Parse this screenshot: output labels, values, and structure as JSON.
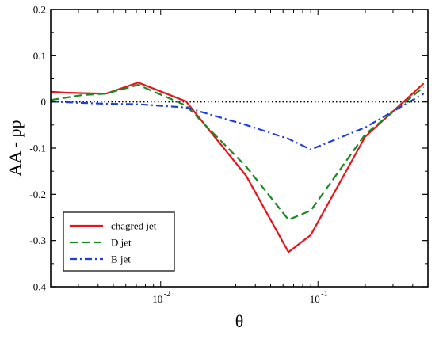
{
  "chart_data": {
    "type": "line",
    "title": "",
    "xlabel": "θ",
    "ylabel": "AA - pp",
    "x_scale": "log",
    "xlim": [
      0.002,
      0.5
    ],
    "ylim": [
      -0.4,
      0.2
    ],
    "y_ticks": [
      -0.4,
      -0.3,
      -0.2,
      -0.1,
      0,
      0.1,
      0.2
    ],
    "y_tick_labels": [
      "-0.4",
      "-0.3",
      "-0.2",
      "-0.1",
      "0",
      "0.1",
      "0.2"
    ],
    "x_ticks": [
      {
        "value": 0.01,
        "base": "10",
        "exp": "-2"
      },
      {
        "value": 0.1,
        "base": "10",
        "exp": "-1"
      }
    ],
    "reference_line": {
      "y": 0,
      "style": "dotted",
      "color": "#000000"
    },
    "grid": false,
    "legend_position": "bottom-left",
    "series": [
      {
        "name": "chagred jet",
        "color": "#e8141b",
        "dash": "solid",
        "x": [
          0.002,
          0.0025,
          0.0032,
          0.0045,
          0.0072,
          0.0145,
          0.035,
          0.065,
          0.09,
          0.2,
          0.47
        ],
        "y": [
          0.022,
          0.02,
          0.019,
          0.018,
          0.042,
          0.001,
          -0.16,
          -0.325,
          -0.288,
          -0.075,
          0.04
        ]
      },
      {
        "name": "D jet",
        "color": "#1a8a22",
        "dash": "dashed",
        "x": [
          0.002,
          0.0032,
          0.0045,
          0.0072,
          0.0145,
          0.035,
          0.065,
          0.09,
          0.2,
          0.47
        ],
        "y": [
          0.004,
          0.015,
          0.018,
          0.037,
          -0.008,
          -0.14,
          -0.255,
          -0.235,
          -0.07,
          0.032
        ]
      },
      {
        "name": "B jet",
        "color": "#1f3fd6",
        "dash": "dashdot",
        "x": [
          0.002,
          0.003,
          0.0045,
          0.0072,
          0.0145,
          0.035,
          0.065,
          0.09,
          0.2,
          0.47
        ],
        "y": [
          0.001,
          -0.002,
          -0.004,
          -0.005,
          -0.012,
          -0.05,
          -0.08,
          -0.103,
          -0.055,
          0.018
        ]
      }
    ]
  }
}
